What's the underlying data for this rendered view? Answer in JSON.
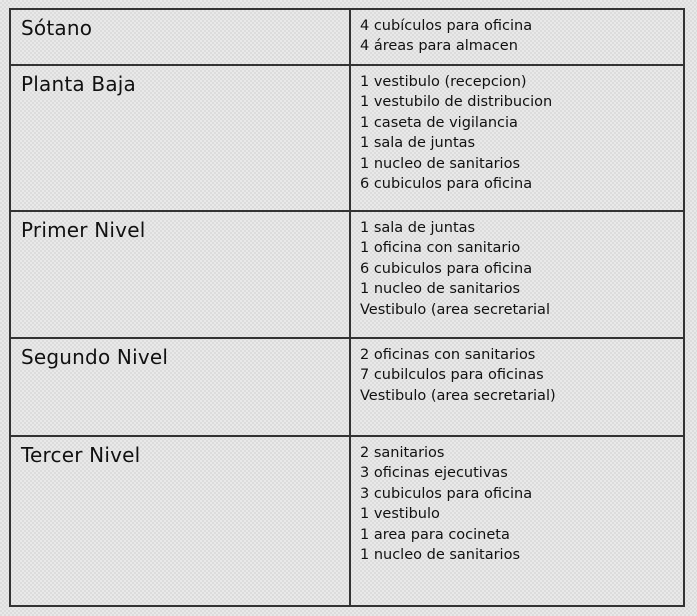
{
  "rows": [
    {
      "level": "Sótano",
      "items": [
        "4 cubículos para oficina",
        "4 áreas para almacen"
      ]
    },
    {
      "level": "Planta Baja",
      "items": [
        "1 vestibulo (recepcion)",
        "1 vestubilo de distribucion",
        "1 caseta de vigilancia",
        "1 sala de juntas",
        "1 nucleo de sanitarios",
        "6 cubiculos para oficina"
      ]
    },
    {
      "level": "Primer Nivel",
      "items": [
        "1 sala de juntas",
        "1 oficina con sanitario",
        "6 cubiculos para oficina",
        "1 nucleo de sanitarios",
        "Vestibulo (area secretarial"
      ]
    },
    {
      "level": "Segundo Nivel",
      "items": [
        "2 oficinas con sanitarios",
        "7 cubilculos para oficinas",
        "Vestibulo (area secretarial)"
      ]
    },
    {
      "level": "Tercer Nivel",
      "items": [
        "2 sanitarios",
        "3 oficinas ejecutivas",
        "3 cubiculos para oficina",
        "1 vestibulo",
        "1 area para cocineta",
        "1 nucleo de sanitarios"
      ]
    }
  ]
}
